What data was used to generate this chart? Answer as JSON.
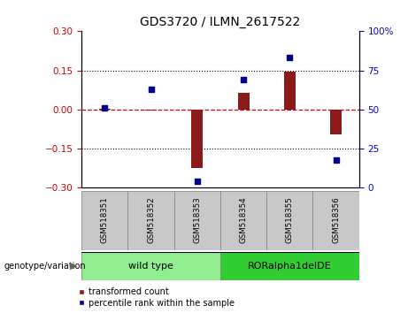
{
  "title": "GDS3720 / ILMN_2617522",
  "samples": [
    "GSM518351",
    "GSM518352",
    "GSM518353",
    "GSM518354",
    "GSM518355",
    "GSM518356"
  ],
  "transformed_count": [
    0.003,
    -0.005,
    -0.225,
    0.065,
    0.145,
    -0.095
  ],
  "percentile_rank": [
    51,
    63,
    4,
    69,
    83,
    18
  ],
  "ylim_left": [
    -0.3,
    0.3
  ],
  "ylim_right": [
    0,
    100
  ],
  "yticks_left": [
    -0.3,
    -0.15,
    0,
    0.15,
    0.3
  ],
  "yticks_right": [
    0,
    25,
    50,
    75,
    100
  ],
  "ytick_labels_right": [
    "0",
    "25",
    "50",
    "75",
    "100%"
  ],
  "bar_color": "#8B1A1A",
  "dot_color": "#00008B",
  "hline_color": "#CC0000",
  "grid_color": "black",
  "group1_label": "wild type",
  "group2_label": "RORalpha1delDE",
  "group1_indices": [
    0,
    1,
    2
  ],
  "group2_indices": [
    3,
    4,
    5
  ],
  "group1_color": "#90EE90",
  "group2_color": "#32CD32",
  "legend_bar_label": "transformed count",
  "legend_dot_label": "percentile rank within the sample",
  "genotype_label": "genotype/variation",
  "bar_width": 0.25,
  "background_color": "#ffffff",
  "plot_bg": "#ffffff",
  "tick_label_color_left": "#CC0000",
  "tick_label_color_right": "#0000CC",
  "table_bg": "#C8C8C8",
  "table_border": "#888888"
}
